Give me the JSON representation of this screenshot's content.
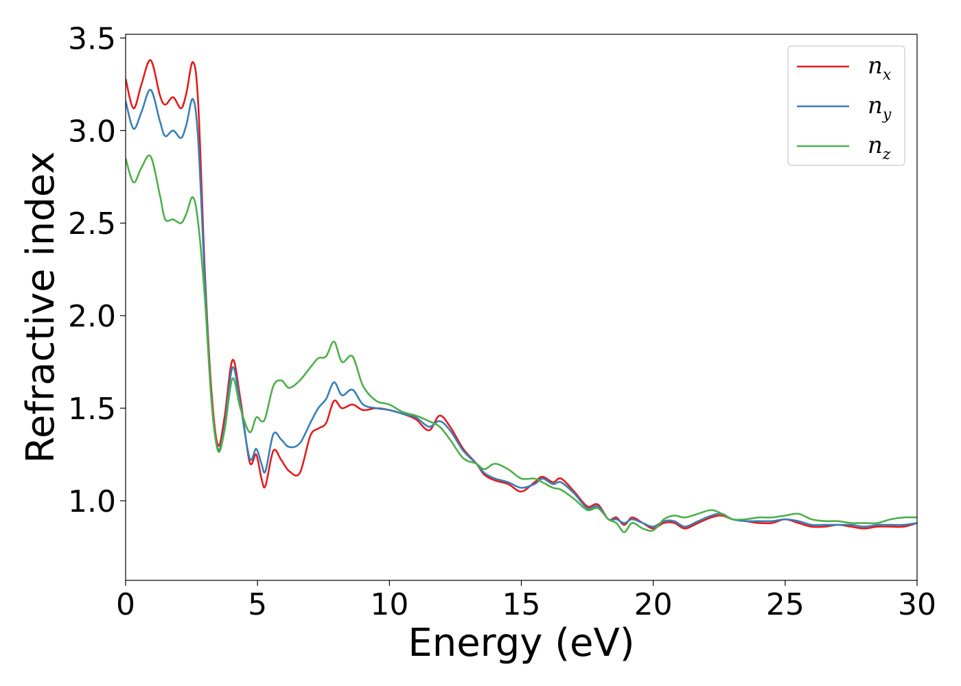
{
  "chart_data": {
    "type": "line",
    "xlabel": "Energy (eV)",
    "ylabel": "Refractive index",
    "xlim": [
      0,
      30
    ],
    "ylim": [
      0.57,
      3.52
    ],
    "xticks": [
      0,
      5,
      10,
      15,
      20,
      25,
      30
    ],
    "xtick_labels": [
      "0",
      "5",
      "10",
      "15",
      "20",
      "25",
      "30"
    ],
    "yticks": [
      1.0,
      1.5,
      2.0,
      2.5,
      3.0,
      3.5
    ],
    "ytick_labels": [
      "1.0",
      "1.5",
      "2.0",
      "2.5",
      "3.0",
      "3.5"
    ],
    "grid": false,
    "legend_position": "top-right",
    "series": [
      {
        "name": "n",
        "subscript": "x",
        "color": "#e41a1c",
        "x": [
          0,
          0.3,
          0.6,
          0.95,
          1.3,
          1.5,
          1.8,
          2.1,
          2.3,
          2.55,
          2.75,
          3.0,
          3.25,
          3.5,
          3.75,
          4.05,
          4.35,
          4.7,
          4.95,
          5.15,
          5.3,
          5.6,
          5.9,
          6.2,
          6.6,
          7.0,
          7.3,
          7.6,
          7.9,
          8.2,
          8.6,
          9.0,
          9.5,
          10.0,
          10.5,
          11.0,
          11.5,
          11.9,
          12.3,
          12.8,
          13.3,
          13.6,
          14.0,
          14.5,
          15.0,
          15.5,
          15.8,
          16.2,
          16.5,
          17.0,
          17.5,
          17.9,
          18.3,
          18.6,
          18.9,
          19.2,
          19.6,
          20.0,
          20.4,
          20.8,
          21.2,
          21.7,
          22.2,
          22.6,
          23.0,
          23.5,
          24.0,
          24.5,
          25.0,
          25.5,
          26.0,
          26.5,
          27.0,
          27.5,
          28.0,
          28.5,
          29.0,
          29.5,
          30.0
        ],
        "y": [
          3.28,
          3.12,
          3.25,
          3.38,
          3.19,
          3.14,
          3.18,
          3.12,
          3.2,
          3.37,
          3.15,
          2.25,
          1.6,
          1.3,
          1.45,
          1.76,
          1.55,
          1.21,
          1.25,
          1.12,
          1.08,
          1.27,
          1.22,
          1.16,
          1.15,
          1.35,
          1.39,
          1.42,
          1.54,
          1.5,
          1.52,
          1.49,
          1.5,
          1.49,
          1.47,
          1.44,
          1.38,
          1.46,
          1.4,
          1.28,
          1.2,
          1.14,
          1.11,
          1.09,
          1.05,
          1.1,
          1.13,
          1.1,
          1.12,
          1.05,
          0.97,
          0.98,
          0.9,
          0.91,
          0.87,
          0.91,
          0.88,
          0.85,
          0.88,
          0.88,
          0.85,
          0.88,
          0.91,
          0.92,
          0.9,
          0.89,
          0.88,
          0.88,
          0.9,
          0.88,
          0.86,
          0.86,
          0.87,
          0.86,
          0.85,
          0.86,
          0.86,
          0.86,
          0.88
        ]
      },
      {
        "name": "n",
        "subscript": "y",
        "color": "#377eb8",
        "x": [
          0,
          0.3,
          0.6,
          0.95,
          1.3,
          1.5,
          1.8,
          2.1,
          2.3,
          2.55,
          2.75,
          3.0,
          3.25,
          3.5,
          3.75,
          4.05,
          4.35,
          4.7,
          4.95,
          5.15,
          5.3,
          5.6,
          5.9,
          6.2,
          6.6,
          7.0,
          7.3,
          7.6,
          7.9,
          8.2,
          8.6,
          9.0,
          9.5,
          10.0,
          10.5,
          11.0,
          11.5,
          11.9,
          12.3,
          12.8,
          13.3,
          13.6,
          14.0,
          14.5,
          15.0,
          15.5,
          15.8,
          16.2,
          16.5,
          17.0,
          17.5,
          17.9,
          18.3,
          18.6,
          18.9,
          19.2,
          19.6,
          20.0,
          20.4,
          20.8,
          21.2,
          21.7,
          22.2,
          22.6,
          23.0,
          23.5,
          24.0,
          24.5,
          25.0,
          25.5,
          26.0,
          26.5,
          27.0,
          27.5,
          28.0,
          28.5,
          29.0,
          29.5,
          30.0
        ],
        "y": [
          3.16,
          3.01,
          3.1,
          3.22,
          3.05,
          2.97,
          3.0,
          2.96,
          3.03,
          3.17,
          2.95,
          2.2,
          1.55,
          1.28,
          1.4,
          1.72,
          1.52,
          1.23,
          1.28,
          1.2,
          1.16,
          1.36,
          1.33,
          1.29,
          1.31,
          1.42,
          1.5,
          1.55,
          1.64,
          1.57,
          1.6,
          1.52,
          1.5,
          1.49,
          1.47,
          1.45,
          1.4,
          1.43,
          1.38,
          1.27,
          1.2,
          1.15,
          1.12,
          1.1,
          1.07,
          1.09,
          1.12,
          1.09,
          1.1,
          1.04,
          0.96,
          0.97,
          0.9,
          0.9,
          0.88,
          0.9,
          0.88,
          0.86,
          0.89,
          0.89,
          0.86,
          0.89,
          0.92,
          0.93,
          0.9,
          0.89,
          0.89,
          0.89,
          0.9,
          0.89,
          0.87,
          0.87,
          0.87,
          0.87,
          0.86,
          0.87,
          0.87,
          0.87,
          0.88
        ]
      },
      {
        "name": "n",
        "subscript": "z",
        "color": "#4daf4a",
        "x": [
          0,
          0.3,
          0.6,
          0.95,
          1.3,
          1.5,
          1.8,
          2.1,
          2.3,
          2.55,
          2.75,
          3.0,
          3.25,
          3.5,
          3.75,
          4.05,
          4.35,
          4.7,
          4.95,
          5.15,
          5.3,
          5.6,
          5.9,
          6.2,
          6.6,
          7.0,
          7.3,
          7.6,
          7.9,
          8.2,
          8.6,
          9.0,
          9.5,
          10.0,
          10.5,
          11.0,
          11.5,
          11.9,
          12.3,
          12.8,
          13.3,
          13.6,
          14.0,
          14.5,
          15.0,
          15.5,
          15.8,
          16.2,
          16.5,
          17.0,
          17.5,
          17.9,
          18.3,
          18.6,
          18.9,
          19.2,
          19.6,
          20.0,
          20.4,
          20.8,
          21.2,
          21.7,
          22.2,
          22.6,
          23.0,
          23.5,
          24.0,
          24.5,
          25.0,
          25.5,
          26.0,
          26.5,
          27.0,
          27.5,
          28.0,
          28.5,
          29.0,
          29.5,
          30.0
        ],
        "y": [
          2.85,
          2.72,
          2.8,
          2.86,
          2.65,
          2.52,
          2.52,
          2.5,
          2.55,
          2.64,
          2.5,
          2.1,
          1.55,
          1.27,
          1.38,
          1.66,
          1.5,
          1.37,
          1.45,
          1.43,
          1.45,
          1.62,
          1.65,
          1.61,
          1.65,
          1.72,
          1.77,
          1.78,
          1.86,
          1.75,
          1.78,
          1.62,
          1.54,
          1.52,
          1.48,
          1.46,
          1.43,
          1.4,
          1.33,
          1.23,
          1.2,
          1.17,
          1.2,
          1.17,
          1.12,
          1.12,
          1.1,
          1.07,
          1.06,
          1.01,
          0.95,
          0.96,
          0.9,
          0.88,
          0.83,
          0.88,
          0.85,
          0.84,
          0.9,
          0.92,
          0.91,
          0.93,
          0.95,
          0.93,
          0.9,
          0.9,
          0.91,
          0.91,
          0.92,
          0.93,
          0.9,
          0.89,
          0.89,
          0.88,
          0.88,
          0.88,
          0.9,
          0.91,
          0.91
        ]
      }
    ]
  }
}
